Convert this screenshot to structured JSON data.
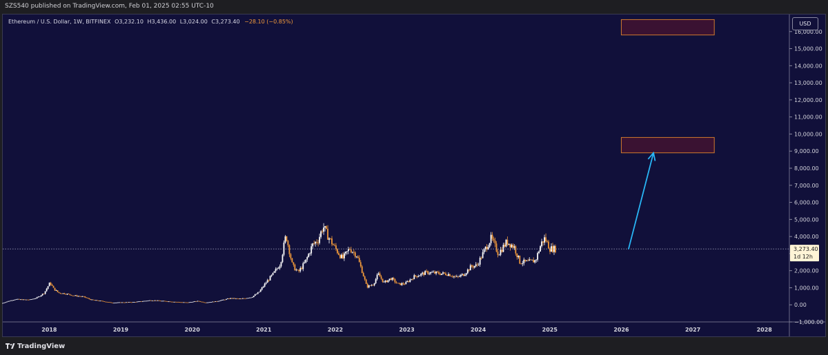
{
  "header": {
    "publisher_line": "SZS540 published on TradingView.com, Feb 01, 2025 02:55 UTC-10"
  },
  "legend": {
    "symbol_text": "Ethereum / U.S. Dollar, 1W, BITFINEX",
    "open": "O3,232.10",
    "high": "H3,436.00",
    "low": "L3,024.00",
    "close": "C3,273.40",
    "change": "−28.10 (−0.85%)",
    "change_color": "#f29a3a"
  },
  "price_axis": {
    "currency": "USD",
    "current_price": "3,273.40",
    "countdown": "1d 12h"
  },
  "footer": {
    "brand": "TradingView"
  },
  "colors": {
    "background": "#11103a",
    "up_candle": "#ffffff",
    "down_candle": "#f29a3a",
    "arrow": "#29b6f6",
    "target_box_border": "#d17b2e",
    "target_box_fill": "#3a1232"
  },
  "chart_data": {
    "type": "candlestick",
    "title": "Ethereum / U.S. Dollar, 1W, BITFINEX",
    "ylabel": "USD",
    "ylim": [
      -1000,
      17000
    ],
    "xlim": [
      2017.35,
      2028.35
    ],
    "y_ticks": [
      -1000,
      0,
      1000,
      2000,
      3000,
      4000,
      5000,
      6000,
      7000,
      8000,
      9000,
      10000,
      11000,
      12000,
      13000,
      14000,
      15000,
      16000
    ],
    "y_tick_labels": [
      "−1,000.00",
      "0.00",
      "1,000.00",
      "2,000.00",
      "3,000.00",
      "4,000.00",
      "5,000.00",
      "6,000.00",
      "7,000.00",
      "8,000.00",
      "9,000.00",
      "10,000.00",
      "11,000.00",
      "12,000.00",
      "13,000.00",
      "14,000.00",
      "15,000.00",
      "16,000.00"
    ],
    "x_ticks": [
      2018,
      2019,
      2020,
      2021,
      2022,
      2023,
      2024,
      2025,
      2026,
      2027,
      2028
    ],
    "x_tick_labels": [
      "2018",
      "2019",
      "2020",
      "2021",
      "2022",
      "2023",
      "2024",
      "2025",
      "2026",
      "2027",
      "2028"
    ],
    "price_path": [
      [
        2017.35,
        80
      ],
      [
        2017.45,
        220
      ],
      [
        2017.55,
        330
      ],
      [
        2017.65,
        300
      ],
      [
        2017.75,
        300
      ],
      [
        2017.85,
        420
      ],
      [
        2017.95,
        700
      ],
      [
        2018.03,
        1300
      ],
      [
        2018.08,
        950
      ],
      [
        2018.15,
        700
      ],
      [
        2018.25,
        650
      ],
      [
        2018.35,
        550
      ],
      [
        2018.5,
        470
      ],
      [
        2018.6,
        300
      ],
      [
        2018.75,
        220
      ],
      [
        2018.9,
        120
      ],
      [
        2019.0,
        140
      ],
      [
        2019.2,
        160
      ],
      [
        2019.45,
        270
      ],
      [
        2019.55,
        240
      ],
      [
        2019.75,
        180
      ],
      [
        2019.95,
        135
      ],
      [
        2020.1,
        220
      ],
      [
        2020.2,
        130
      ],
      [
        2020.35,
        200
      ],
      [
        2020.55,
        380
      ],
      [
        2020.7,
        350
      ],
      [
        2020.85,
        450
      ],
      [
        2020.95,
        730
      ],
      [
        2021.05,
        1300
      ],
      [
        2021.15,
        1800
      ],
      [
        2021.25,
        2400
      ],
      [
        2021.33,
        4100
      ],
      [
        2021.42,
        2300
      ],
      [
        2021.5,
        1900
      ],
      [
        2021.6,
        2500
      ],
      [
        2021.7,
        3500
      ],
      [
        2021.78,
        3800
      ],
      [
        2021.85,
        4600
      ],
      [
        2021.92,
        4000
      ],
      [
        2022.02,
        3300
      ],
      [
        2022.12,
        2700
      ],
      [
        2022.22,
        3300
      ],
      [
        2022.32,
        2900
      ],
      [
        2022.4,
        1900
      ],
      [
        2022.46,
        1050
      ],
      [
        2022.55,
        1200
      ],
      [
        2022.62,
        1800
      ],
      [
        2022.7,
        1300
      ],
      [
        2022.8,
        1550
      ],
      [
        2022.9,
        1200
      ],
      [
        2023.0,
        1250
      ],
      [
        2023.12,
        1650
      ],
      [
        2023.3,
        1900
      ],
      [
        2023.45,
        1850
      ],
      [
        2023.6,
        1800
      ],
      [
        2023.72,
        1600
      ],
      [
        2023.82,
        1800
      ],
      [
        2023.92,
        2250
      ],
      [
        2024.0,
        2300
      ],
      [
        2024.12,
        3300
      ],
      [
        2024.2,
        3900
      ],
      [
        2024.3,
        3000
      ],
      [
        2024.42,
        3700
      ],
      [
        2024.52,
        3400
      ],
      [
        2024.6,
        2500
      ],
      [
        2024.72,
        2500
      ],
      [
        2024.82,
        2600
      ],
      [
        2024.9,
        3600
      ],
      [
        2024.95,
        3900
      ],
      [
        2025.02,
        3300
      ],
      [
        2025.08,
        3273
      ]
    ],
    "current_price": 3273.4,
    "annotations": [
      {
        "type": "rectangle",
        "x_from": 2026.0,
        "x_to": 2027.3,
        "y_from": 8900,
        "y_to": 9800
      },
      {
        "type": "rectangle",
        "x_from": 2026.0,
        "x_to": 2027.3,
        "y_from": 15800,
        "y_to": 16700
      },
      {
        "type": "arrow",
        "from": [
          2026.1,
          3250
        ],
        "to": [
          2026.45,
          8900
        ]
      }
    ]
  }
}
